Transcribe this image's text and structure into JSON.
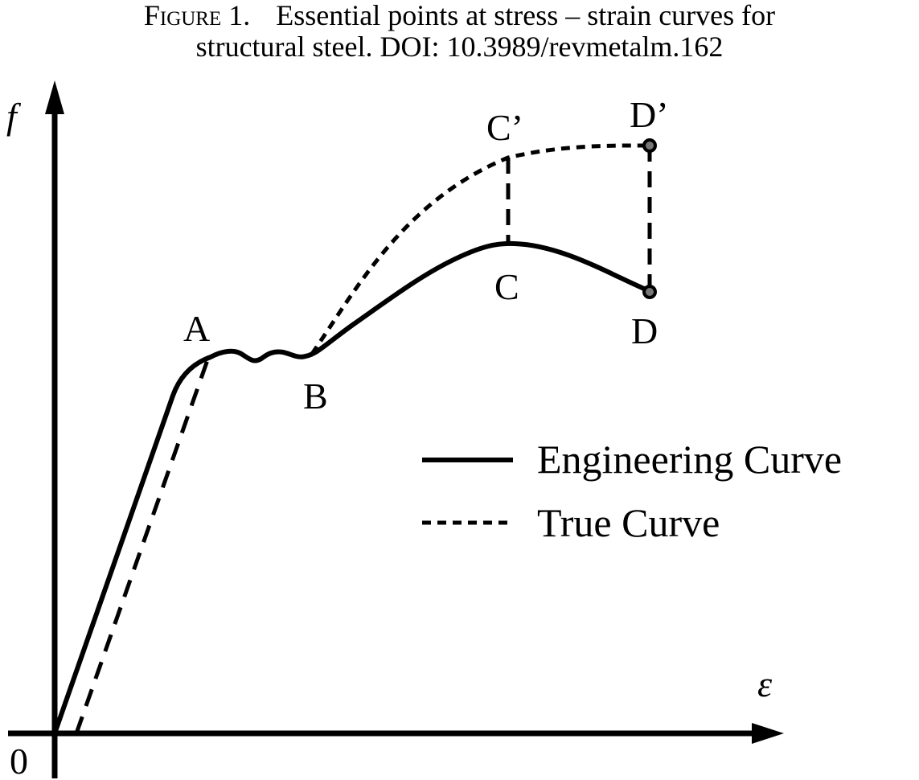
{
  "caption": {
    "label": "Figure 1.",
    "line1": "Essential points at stress – strain curves for",
    "line2": "structural steel. DOI: 10.3989/revmetalm.162"
  },
  "axes": {
    "y_label": "f",
    "x_label": "ε",
    "origin_label": "0"
  },
  "points": {
    "A": "A",
    "B": "B",
    "C": "C",
    "D": "D",
    "C_prime": "C’",
    "D_prime": "D’"
  },
  "legend": {
    "engineering": "Engineering Curve",
    "true": "True Curve"
  }
}
